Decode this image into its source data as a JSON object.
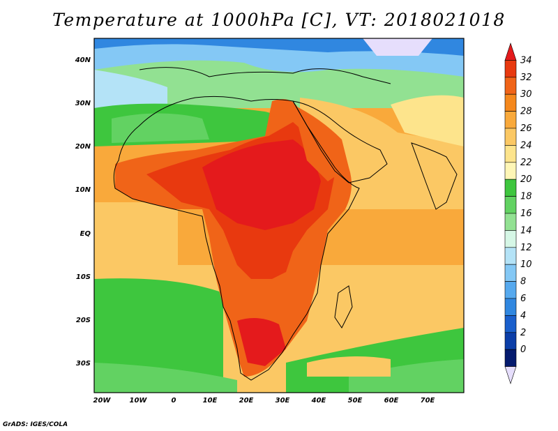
{
  "title": "Temperature at 1000hPa [C], VT: 2018021018",
  "footer": "GrADS: IGES/COLA",
  "map": {
    "lat_ticks": [
      "40N",
      "30N",
      "20N",
      "10N",
      "EQ",
      "10S",
      "20S",
      "30S"
    ],
    "lon_ticks": [
      "20W",
      "10W",
      "0",
      "10E",
      "20E",
      "30E",
      "40E",
      "50E",
      "60E",
      "70E"
    ]
  },
  "colorbar": {
    "levels": [
      "34",
      "32",
      "30",
      "28",
      "26",
      "24",
      "22",
      "20",
      "18",
      "16",
      "14",
      "12",
      "10",
      "8",
      "6",
      "4",
      "2",
      "0"
    ],
    "colors_top_to_bottom": [
      "#e41a1c",
      "#e8390f",
      "#f06418",
      "#f5881c",
      "#f9a93b",
      "#fbc864",
      "#fde48c",
      "#fef6b6",
      "#3ec63e",
      "#62d262",
      "#92e192",
      "#d6f7e6",
      "#b4e3f7",
      "#84c8f5",
      "#56a9ee",
      "#3087e0",
      "#1a5fcc",
      "#0b3ea8",
      "#041a6e",
      "#e6defc"
    ]
  }
}
